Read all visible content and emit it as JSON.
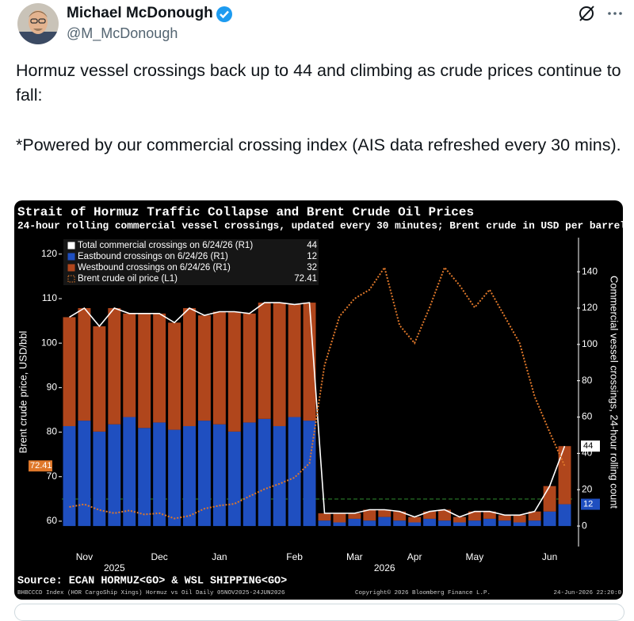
{
  "tweet": {
    "author": {
      "name": "Michael McDonough",
      "handle": "@M_McDonough"
    },
    "text": [
      "Hormuz vessel crossings back up to 44 and climbing as crude prices continue to fall:",
      "*Powered by our commercial crossing index (AIS data refreshed every 30 mins)."
    ]
  },
  "chart_data": {
    "type": "bar",
    "title": "Strait of Hormuz Traffic Collapse and Brent Crude Oil Prices",
    "subtitle": "24-hour rolling commercial vessel crossings, updated every 30 minutes; Brent crude in USD per barrel",
    "y_label": "Brent crude price, USD/bbl",
    "y2_label": "Commercial vessel crossings, 24-hour rolling count",
    "source": "Source: ECAN HORMUZ<GO> & WSL SHIPPING<GO>",
    "footer": [
      "BHBCCCD Index (HOR CargoShip Xings) Hormuz vs Oil Daily 05NOV2025-24JUN2026",
      "Copyright© 2026 Bloomberg Finance L.P.",
      "24-Jun-2026 22:20:0"
    ],
    "categories": [
      null,
      "Nov",
      null,
      null,
      null,
      null,
      "Dec",
      null,
      null,
      null,
      "Jan",
      null,
      null,
      null,
      null,
      "Feb",
      null,
      null,
      null,
      "Mar",
      null,
      null,
      null,
      "Apr",
      null,
      null,
      null,
      "May",
      null,
      null,
      null,
      null,
      "Jun",
      null
    ],
    "years": [
      {
        "index": 3,
        "label": "2025"
      },
      {
        "index": 21,
        "label": "2026"
      }
    ],
    "series": [
      {
        "name": "Total commercial crossings on 6/24/26 (R1)",
        "type": "line",
        "axis": "y2",
        "color": "#ffffff",
        "values": [
          115,
          120,
          110,
          120,
          117,
          117,
          117,
          112,
          120,
          116,
          118,
          118,
          117,
          123,
          123,
          122,
          123,
          7,
          7,
          7,
          9,
          9,
          8,
          5,
          8,
          9,
          5,
          8,
          8,
          6,
          6,
          8,
          22,
          44
        ]
      },
      {
        "name": "Eastbound crossings on 6/24/26 (R1)",
        "type": "bar",
        "axis": "y2",
        "color": "#1f4fc0",
        "values": [
          55,
          58,
          52,
          56,
          60,
          54,
          57,
          53,
          55,
          58,
          56,
          52,
          57,
          59,
          55,
          60,
          58,
          3,
          2,
          4,
          3,
          5,
          3,
          2,
          4,
          3,
          2,
          3,
          4,
          3,
          2,
          3,
          8,
          12
        ]
      },
      {
        "name": "Westbound crossings on 6/24/26 (R1)",
        "type": "bar",
        "axis": "y2",
        "color": "#b0461c",
        "values": [
          60,
          62,
          58,
          64,
          57,
          63,
          60,
          59,
          65,
          58,
          62,
          66,
          60,
          64,
          68,
          62,
          65,
          4,
          5,
          3,
          6,
          4,
          5,
          3,
          4,
          6,
          3,
          5,
          4,
          3,
          4,
          5,
          14,
          32
        ]
      },
      {
        "name": "Brent crude oil price (L1)",
        "type": "line",
        "axis": "y",
        "color": "#e0782a",
        "line_style": "dotted",
        "values": [
          63.2,
          63.8,
          62.5,
          61.8,
          62.4,
          61.5,
          61.8,
          60.6,
          61.2,
          62.8,
          63.5,
          63.9,
          65.6,
          67.2,
          68.4,
          69.8,
          73,
          95,
          106,
          110,
          112,
          117,
          104,
          100,
          108,
          117,
          113,
          108,
          112,
          106,
          100,
          88,
          80,
          72.41
        ]
      }
    ],
    "ylim": [
      54.3,
      123.7
    ],
    "yticks": [
      60,
      70,
      80,
      90,
      100,
      110,
      120
    ],
    "y2lim": [
      -11.3,
      158.8
    ],
    "y2ticks": [
      0,
      20,
      40,
      60,
      80,
      100,
      120,
      140
    ],
    "stacked": true,
    "legend": "upper left"
  }
}
